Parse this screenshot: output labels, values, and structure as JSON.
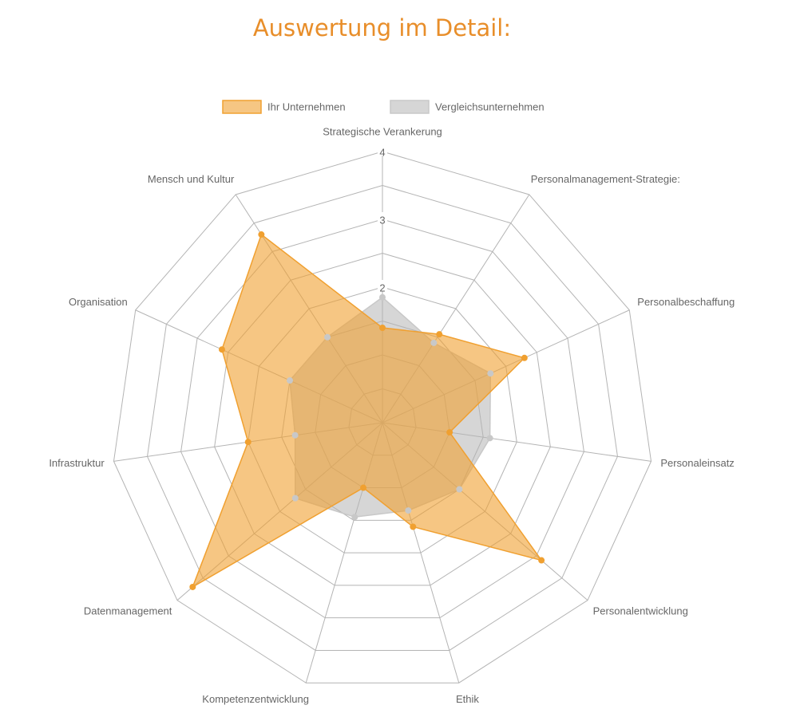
{
  "title": "Auswertung im Detail:",
  "chart_data": {
    "type": "radar",
    "categories": [
      "Strategische Verankerung",
      "Personalmanagement-Strategie:",
      "Personalbeschaffung",
      "Personaleinsatz",
      "Personalentwicklung",
      "Ethik",
      "Kompetenzentwicklung",
      "Datenmanagement",
      "Infrastruktur",
      "Organisation",
      "Mensch und Kultur"
    ],
    "rlim": [
      0,
      4
    ],
    "ticks": [
      "2",
      "3",
      "4"
    ],
    "series": [
      {
        "name": "Ihr Unternehmen",
        "stroke": "#f0a030",
        "fill": "rgba(240,160,48,0.6)",
        "values": [
          1.4,
          1.55,
          2.3,
          1.0,
          3.1,
          1.6,
          1.0,
          3.7,
          2.0,
          2.6,
          3.3
        ]
      },
      {
        "name": "Vergleichsunternehmen",
        "stroke": "#c8c8c8",
        "fill": "rgba(180,180,180,0.55)",
        "values": [
          1.85,
          1.4,
          1.75,
          1.6,
          1.5,
          1.35,
          1.45,
          1.7,
          1.3,
          1.5,
          1.5
        ]
      }
    ],
    "legend": "top",
    "grid": true
  }
}
